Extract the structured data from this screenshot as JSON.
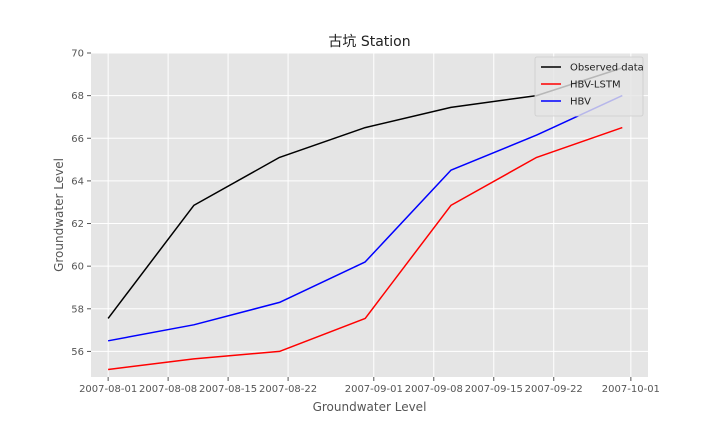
{
  "chart_data": {
    "type": "line",
    "title": "古坑 Station",
    "xlabel": "Groundwater Level",
    "ylabel": "Groundwater Level",
    "x": [
      "2007-08-01",
      "2007-08-11",
      "2007-08-21",
      "2007-08-31",
      "2007-09-10",
      "2007-09-20",
      "2007-09-30"
    ],
    "xticks": [
      "2007-08-01",
      "2007-08-08",
      "2007-08-15",
      "2007-08-22",
      "2007-09-01",
      "2007-09-08",
      "2007-09-15",
      "2007-09-22",
      "2007-10-01"
    ],
    "xlim": [
      "2007-07-30",
      "2007-10-03"
    ],
    "yticks": [
      56,
      58,
      60,
      62,
      64,
      66,
      68,
      70
    ],
    "ylim": [
      54.8,
      70
    ],
    "grid": true,
    "legend_position": "top-right",
    "series": [
      {
        "name": "Observed data",
        "color": "#000000",
        "values": [
          57.55,
          62.85,
          65.1,
          66.5,
          67.45,
          68.0,
          69.3
        ]
      },
      {
        "name": "HBV-LSTM",
        "color": "#ff0000",
        "values": [
          55.15,
          55.65,
          56.0,
          57.55,
          62.85,
          65.1,
          66.5
        ]
      },
      {
        "name": "HBV",
        "color": "#0000ff",
        "values": [
          56.5,
          57.25,
          58.3,
          60.2,
          64.5,
          66.15,
          68.0
        ]
      }
    ]
  }
}
